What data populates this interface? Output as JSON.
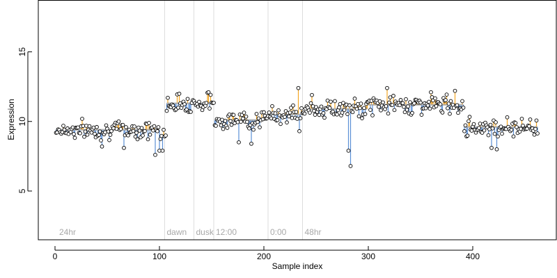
{
  "chart_data": {
    "type": "scatter",
    "title": "",
    "xlabel": "Sample index",
    "ylabel": "Expression",
    "xlim": [
      -16,
      480
    ],
    "ylim": [
      1.5,
      18.7
    ],
    "x_ticks": [
      0,
      100,
      200,
      300,
      400
    ],
    "y_ticks": [
      5,
      10,
      15
    ],
    "grid": false,
    "legend": "none",
    "colors": {
      "point_edge": "#000000",
      "point_fill": "#ffffff",
      "above_fit": "#f5a623",
      "below_fit": "#5b8fd6",
      "fit_line": "#a0a0a0",
      "annotation": "#a8a8a8",
      "annotation_line": "#dddddd"
    },
    "annotations": [
      {
        "x": 2,
        "label": "24hr",
        "line": false
      },
      {
        "x": 105,
        "label": "dawn",
        "line": true
      },
      {
        "x": 133,
        "label": "dusk",
        "line": true
      },
      {
        "x": 152,
        "label": "12:00",
        "line": true
      },
      {
        "x": 204,
        "label": "0:00",
        "line": true
      },
      {
        "x": 237,
        "label": "48hr",
        "line": true
      }
    ],
    "segments": [
      {
        "x_start": 1,
        "x_end": 100,
        "fit_level": 9.4
      },
      {
        "x_start": 101,
        "x_end": 106,
        "fit_level": 9.0
      },
      {
        "x_start": 107,
        "x_end": 152,
        "fit_level": 11.3
      },
      {
        "x_start": 153,
        "x_end": 203,
        "fit_level": 10.1
      },
      {
        "x_start": 204,
        "x_end": 239,
        "fit_level": 10.5
      },
      {
        "x_start": 240,
        "x_end": 299,
        "fit_level": 10.9
      },
      {
        "x_start": 300,
        "x_end": 391,
        "fit_level": 11.2
      },
      {
        "x_start": 392,
        "x_end": 462,
        "fit_level": 9.6
      }
    ],
    "outliers": [
      {
        "x": 45,
        "y": 8.2
      },
      {
        "x": 66,
        "y": 8.1
      },
      {
        "x": 96,
        "y": 7.6
      },
      {
        "x": 100,
        "y": 7.9
      },
      {
        "x": 103,
        "y": 7.9
      },
      {
        "x": 176,
        "y": 8.5
      },
      {
        "x": 188,
        "y": 8.4
      },
      {
        "x": 281,
        "y": 7.9
      },
      {
        "x": 283,
        "y": 6.8
      },
      {
        "x": 418,
        "y": 8.1
      },
      {
        "x": 423,
        "y": 8.0
      },
      {
        "x": 234,
        "y": 9.3
      },
      {
        "x": 246,
        "y": 11.9
      },
      {
        "x": 318,
        "y": 12.4
      },
      {
        "x": 360,
        "y": 12.1
      },
      {
        "x": 383,
        "y": 12.2
      },
      {
        "x": 233,
        "y": 12.4
      },
      {
        "x": 147,
        "y": 12.1
      }
    ],
    "seed": 7,
    "noise": 0.55
  }
}
